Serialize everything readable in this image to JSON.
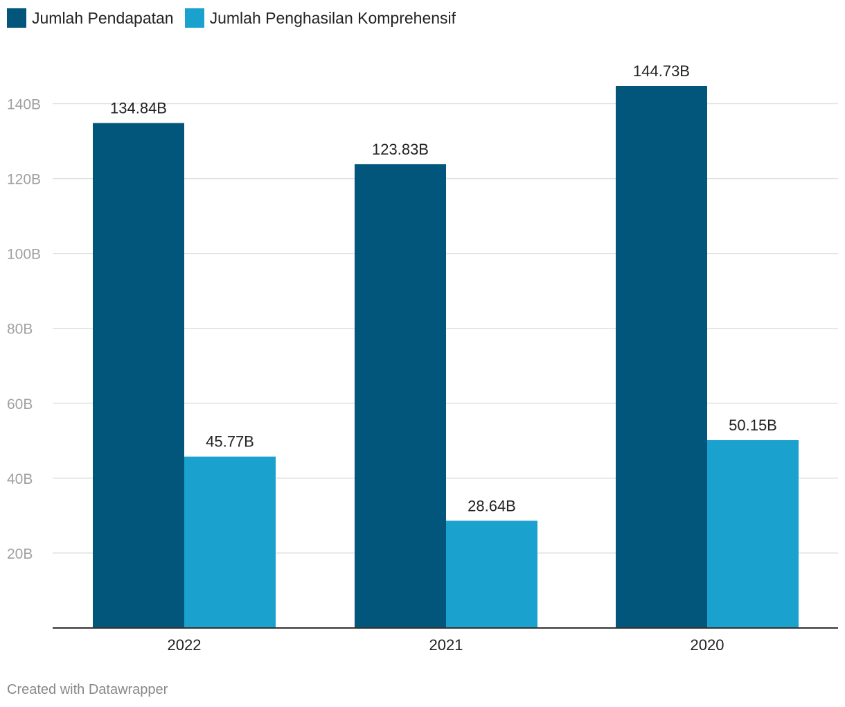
{
  "legend": [
    {
      "label": "Jumlah Pendapatan",
      "color": "#02557b"
    },
    {
      "label": "Jumlah Penghasilan Komprehensif",
      "color": "#1aa1ce"
    }
  ],
  "chart_data": {
    "type": "bar",
    "categories": [
      "2022",
      "2021",
      "2020"
    ],
    "series": [
      {
        "name": "Jumlah Pendapatan",
        "color": "#02557b",
        "values": [
          134.84,
          123.83,
          144.73
        ],
        "labels": [
          "134.84B",
          "123.83B",
          "144.73B"
        ]
      },
      {
        "name": "Jumlah Penghasilan Komprehensif",
        "color": "#1aa1ce",
        "values": [
          45.77,
          28.64,
          50.15
        ],
        "labels": [
          "45.77B",
          "28.64B",
          "50.15B"
        ]
      }
    ],
    "yticks": [
      20,
      40,
      60,
      80,
      100,
      120,
      140
    ],
    "ytick_labels": [
      "20B",
      "40B",
      "60B",
      "80B",
      "100B",
      "120B",
      "140B"
    ],
    "ylim": [
      0,
      140
    ],
    "grid": true,
    "legend_position": "top-left"
  },
  "footer": "Created with Datawrapper"
}
